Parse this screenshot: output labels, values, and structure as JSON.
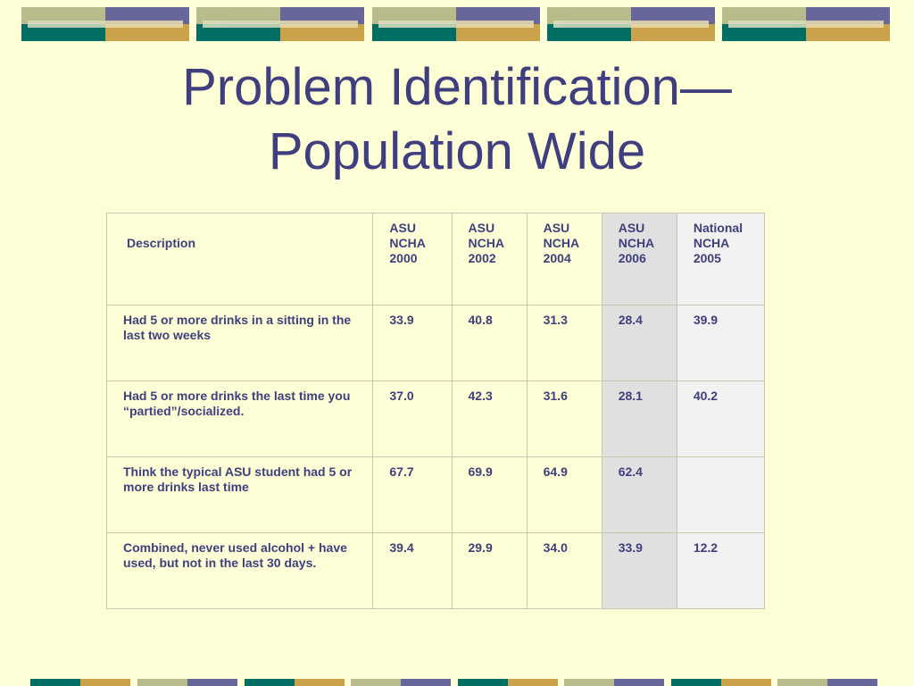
{
  "slide": {
    "title_line1": "Problem Identification—",
    "title_line2": "Population Wide"
  },
  "colors": {
    "background": "#FFFFD7",
    "title": "#3F3F7F",
    "teal": "#006E63",
    "gold": "#C9A24A",
    "olive": "#B8BC8A",
    "purple": "#67679C"
  },
  "table": {
    "headers": [
      "Description",
      "ASU NCHA 2000",
      "ASU NCHA 2002",
      "ASU NCHA 2004",
      "ASU NCHA 2006",
      "National NCHA 2005"
    ],
    "header_lines": [
      [
        "Description"
      ],
      [
        "ASU",
        "NCHA",
        "2000"
      ],
      [
        "ASU",
        "NCHA",
        "2002"
      ],
      [
        "ASU",
        "NCHA",
        "2004"
      ],
      [
        "ASU",
        "NCHA",
        "2006"
      ],
      [
        "National",
        "NCHA",
        "2005"
      ]
    ],
    "rows": [
      {
        "description": "Had 5 or more drinks in a sitting in the last two weeks",
        "values": [
          "33.9",
          "40.8",
          "31.3",
          "28.4",
          "39.9"
        ]
      },
      {
        "description": "Had 5 or more drinks the last time you “partied”/socialized.",
        "values": [
          "37.0",
          "42.3",
          "31.6",
          "28.1",
          "40.2"
        ]
      },
      {
        "description": "Think the typical ASU student had 5 or more drinks last time",
        "values": [
          "67.7",
          "69.9",
          "64.9",
          "62.4",
          ""
        ]
      },
      {
        "description": "Combined, never used alcohol + have used, but not in the last 30 days.",
        "values": [
          "39.4",
          "29.9",
          "34.0",
          "33.9",
          "12.2"
        ]
      }
    ]
  }
}
